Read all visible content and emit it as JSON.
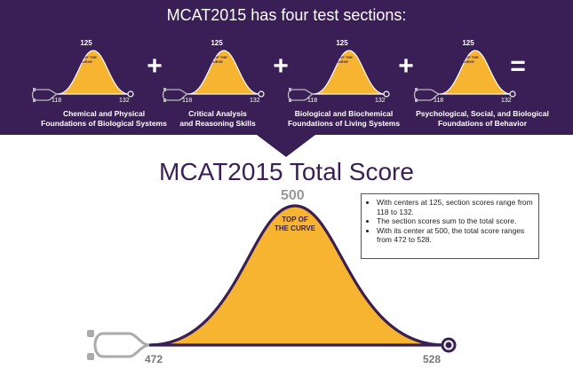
{
  "header": {
    "title": "MCAT2015 has four test sections:"
  },
  "sections": [
    {
      "label_line1": "Chemical and Physical",
      "label_line2": "Foundations of Biological Systems",
      "center": "125",
      "tag": "TOP OF THE CURVE",
      "min": "118",
      "max": "132"
    },
    {
      "label_line1": "Critical Analysis",
      "label_line2": "and Reasoning Skills",
      "center": "125",
      "tag": "TOP OF THE CURVE",
      "min": "118",
      "max": "132"
    },
    {
      "label_line1": "Biological and Biochemical",
      "label_line2": "Foundations of Living Systems",
      "center": "125",
      "tag": "TOP OF THE CURVE",
      "min": "118",
      "max": "132"
    },
    {
      "label_line1": "Psychological, Social, and Biological",
      "label_line2": "Foundations of Behavior",
      "center": "125",
      "tag": "TOP OF THE CURVE",
      "min": "118",
      "max": "132"
    }
  ],
  "operators": [
    "+",
    "+",
    "+",
    "="
  ],
  "total": {
    "title": "MCAT2015 Total Score",
    "center": "500",
    "tag_line1": "TOP OF",
    "tag_line2": "THE CURVE",
    "min": "472",
    "max": "528"
  },
  "notes": [
    "With centers at 125, section scores range from 118 to 132.",
    "The section scores sum to the total score.",
    "With its center at 500, the total score ranges from 472 to 528."
  ],
  "colors": {
    "banner": "#3a1f56",
    "curve_fill": "#f6b431",
    "curve_outline": "#3a1f56",
    "text_light": "#ffffff",
    "stethoscope": "#aaaaaa"
  },
  "icons": {
    "stethoscope": "stethoscope-icon",
    "chestpiece": "chestpiece-icon"
  }
}
